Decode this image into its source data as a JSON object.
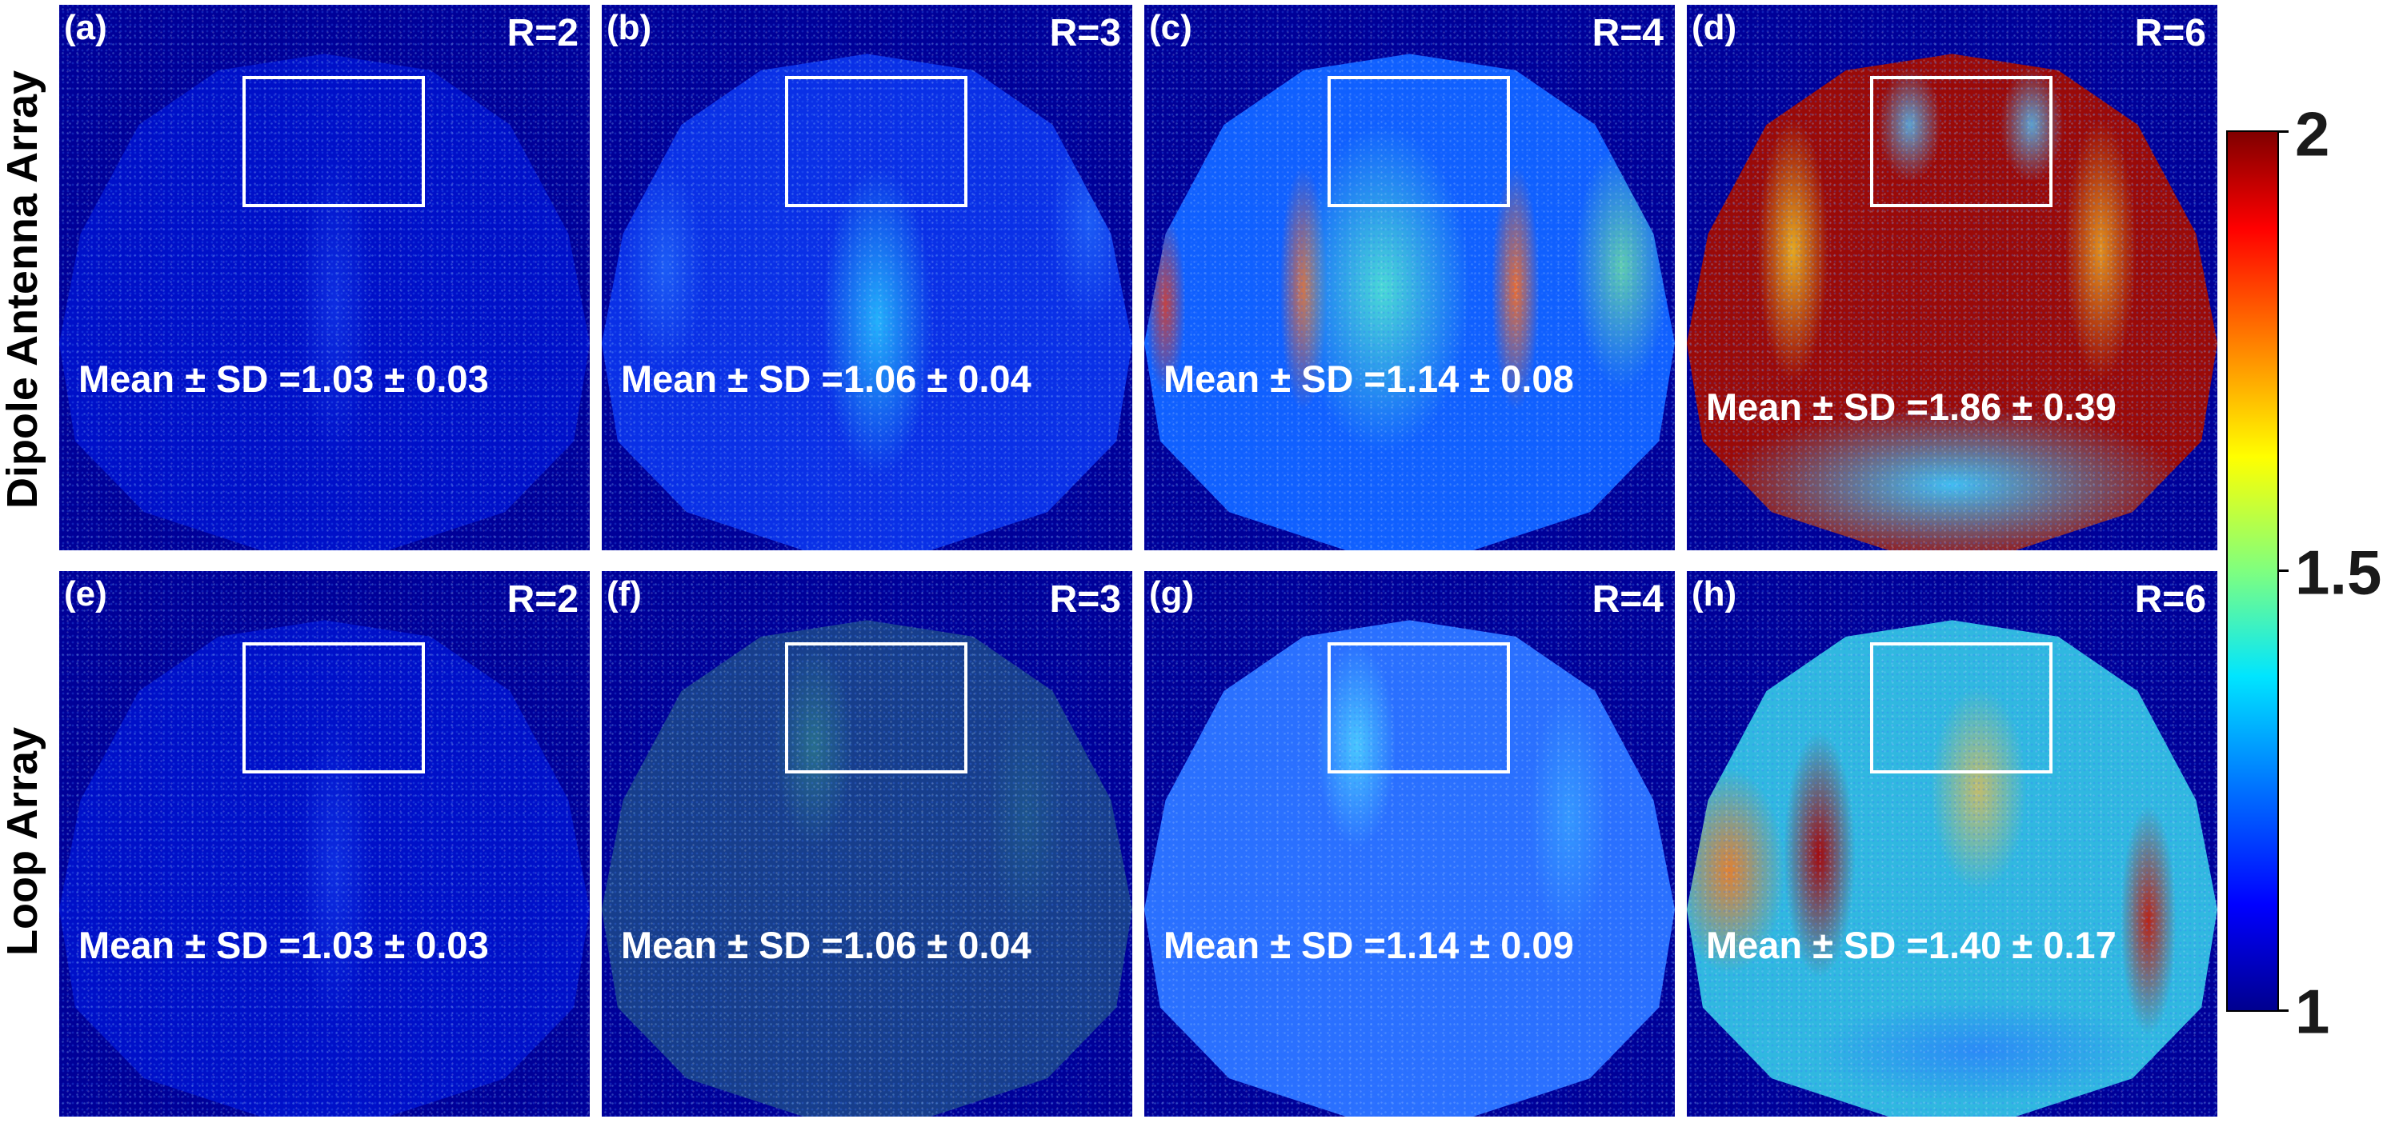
{
  "row_labels": [
    "Dipole Antenna Array",
    "Loop Array"
  ],
  "panels": [
    {
      "tag": "(a)",
      "r": "R=2",
      "stat": "Mean ± SD =1.03 ± 0.03"
    },
    {
      "tag": "(b)",
      "r": "R=3",
      "stat": "Mean ± SD =1.06 ± 0.04"
    },
    {
      "tag": "(c)",
      "r": "R=4",
      "stat": "Mean ± SD =1.14 ± 0.08"
    },
    {
      "tag": "(d)",
      "r": "R=6",
      "stat": "Mean ± SD =1.86 ± 0.39"
    },
    {
      "tag": "(e)",
      "r": "R=2",
      "stat": "Mean ± SD =1.03 ± 0.03"
    },
    {
      "tag": "(f)",
      "r": "R=3",
      "stat": "Mean ± SD =1.06 ± 0.04"
    },
    {
      "tag": "(g)",
      "r": "R=4",
      "stat": "Mean ± SD =1.14 ± 0.09"
    },
    {
      "tag": "(h)",
      "r": "R=6",
      "stat": "Mean ± SD =1.40 ± 0.17"
    }
  ],
  "colorbar": {
    "ticks": [
      "2",
      "1.5",
      "1"
    ],
    "colormap": "jet",
    "min": 1,
    "max": 2
  }
}
